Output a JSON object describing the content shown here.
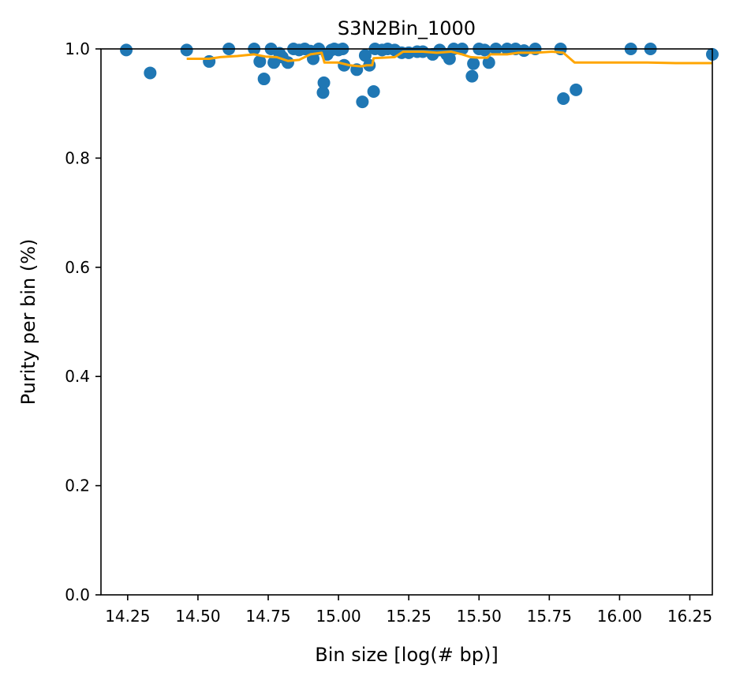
{
  "chart_data": {
    "type": "scatter",
    "title": "S3N2Bin_1000",
    "xlabel": "Bin size [log(# bp)]",
    "ylabel": "Purity per bin (%)",
    "xlim": [
      14.155,
      16.33
    ],
    "ylim": [
      0,
      1.0
    ],
    "xticks": [
      14.25,
      14.5,
      14.75,
      15.0,
      15.25,
      15.5,
      15.75,
      16.0,
      16.25
    ],
    "xtick_labels": [
      "14.25",
      "14.50",
      "14.75",
      "15.00",
      "15.25",
      "15.50",
      "15.75",
      "16.00",
      "16.25"
    ],
    "yticks": [
      0.0,
      0.2,
      0.4,
      0.6,
      0.8,
      1.0
    ],
    "ytick_labels": [
      "0.0",
      "0.2",
      "0.4",
      "0.6",
      "0.8",
      "1.0"
    ],
    "grid": false,
    "colors": {
      "points": "#1f77b4",
      "trend": "#ffa500"
    },
    "series": [
      {
        "kind": "scatter",
        "points": [
          [
            14.245,
            0.998
          ],
          [
            14.33,
            0.956
          ],
          [
            14.46,
            0.998
          ],
          [
            14.54,
            0.977
          ],
          [
            14.61,
            1.0
          ],
          [
            14.7,
            1.0
          ],
          [
            14.72,
            0.977
          ],
          [
            14.735,
            0.945
          ],
          [
            14.76,
            1.0
          ],
          [
            14.77,
            0.975
          ],
          [
            14.79,
            0.992
          ],
          [
            14.8,
            0.985
          ],
          [
            14.82,
            0.975
          ],
          [
            14.84,
            1.0
          ],
          [
            14.86,
            0.998
          ],
          [
            14.88,
            1.0
          ],
          [
            14.9,
            0.996
          ],
          [
            14.91,
            0.982
          ],
          [
            14.93,
            1.0
          ],
          [
            14.945,
            0.92
          ],
          [
            14.948,
            0.938
          ],
          [
            14.96,
            0.99
          ],
          [
            14.975,
            0.998
          ],
          [
            14.985,
            1.0
          ],
          [
            15.0,
            0.998
          ],
          [
            15.015,
            1.0
          ],
          [
            15.02,
            0.97
          ],
          [
            15.065,
            0.962
          ],
          [
            15.085,
            0.903
          ],
          [
            15.095,
            0.988
          ],
          [
            15.11,
            0.97
          ],
          [
            15.125,
            0.922
          ],
          [
            15.13,
            1.0
          ],
          [
            15.155,
            0.998
          ],
          [
            15.175,
            1.0
          ],
          [
            15.2,
            0.998
          ],
          [
            15.225,
            0.993
          ],
          [
            15.25,
            0.993
          ],
          [
            15.28,
            0.995
          ],
          [
            15.3,
            0.995
          ],
          [
            15.335,
            0.99
          ],
          [
            15.36,
            0.998
          ],
          [
            15.385,
            0.99
          ],
          [
            15.395,
            0.982
          ],
          [
            15.41,
            1.0
          ],
          [
            15.44,
            1.0
          ],
          [
            15.475,
            0.95
          ],
          [
            15.48,
            0.973
          ],
          [
            15.5,
            1.0
          ],
          [
            15.52,
            0.998
          ],
          [
            15.535,
            0.975
          ],
          [
            15.56,
            1.0
          ],
          [
            15.6,
            1.0
          ],
          [
            15.63,
            1.0
          ],
          [
            15.66,
            0.997
          ],
          [
            15.7,
            1.0
          ],
          [
            15.79,
            1.0
          ],
          [
            15.8,
            0.909
          ],
          [
            15.845,
            0.925
          ],
          [
            16.04,
            1.0
          ],
          [
            16.11,
            1.0
          ],
          [
            16.33,
            0.99
          ]
        ]
      },
      {
        "kind": "line",
        "points": [
          [
            14.46,
            0.982
          ],
          [
            14.54,
            0.982
          ],
          [
            14.58,
            0.985
          ],
          [
            14.64,
            0.987
          ],
          [
            14.7,
            0.99
          ],
          [
            14.74,
            0.986
          ],
          [
            14.78,
            0.985
          ],
          [
            14.82,
            0.978
          ],
          [
            14.86,
            0.98
          ],
          [
            14.9,
            0.99
          ],
          [
            14.94,
            0.993
          ],
          [
            14.95,
            0.975
          ],
          [
            15.0,
            0.975
          ],
          [
            15.04,
            0.97
          ],
          [
            15.08,
            0.968
          ],
          [
            15.1,
            0.97
          ],
          [
            15.12,
            0.97
          ],
          [
            15.125,
            0.983
          ],
          [
            15.2,
            0.985
          ],
          [
            15.23,
            0.995
          ],
          [
            15.3,
            0.995
          ],
          [
            15.35,
            0.993
          ],
          [
            15.4,
            0.995
          ],
          [
            15.44,
            0.99
          ],
          [
            15.47,
            0.985
          ],
          [
            15.5,
            0.984
          ],
          [
            15.53,
            0.984
          ],
          [
            15.54,
            0.99
          ],
          [
            15.6,
            0.99
          ],
          [
            15.64,
            0.993
          ],
          [
            15.7,
            0.993
          ],
          [
            15.76,
            0.995
          ],
          [
            15.8,
            0.993
          ],
          [
            15.84,
            0.975
          ],
          [
            16.1,
            0.975
          ],
          [
            16.2,
            0.974
          ],
          [
            16.33,
            0.974
          ]
        ]
      }
    ]
  }
}
